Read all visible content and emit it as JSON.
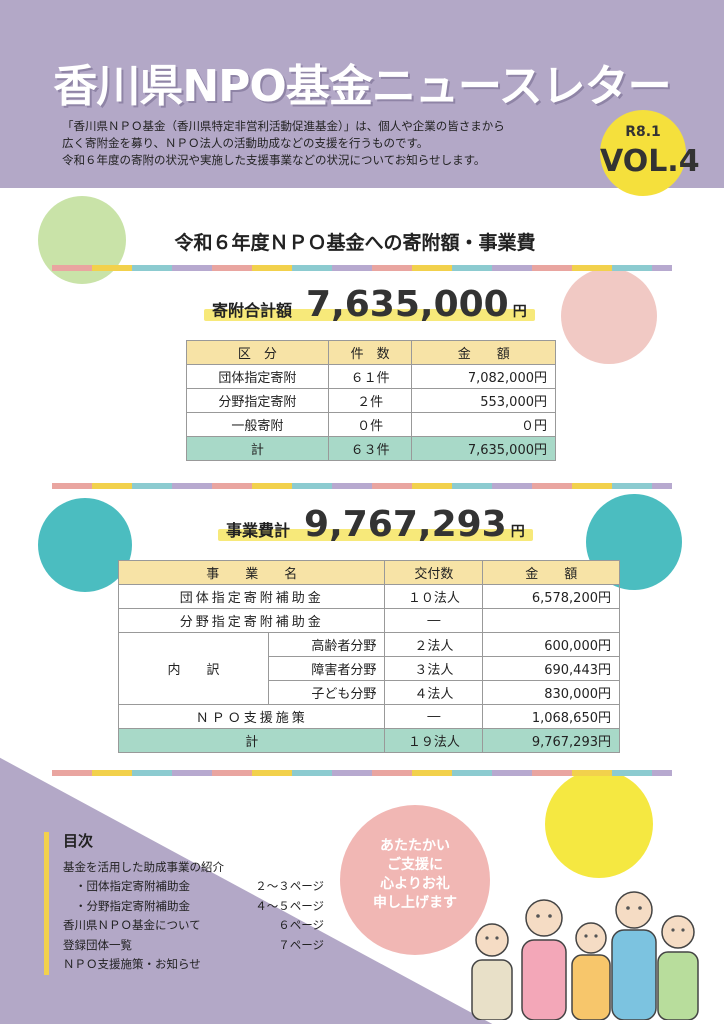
{
  "header": {
    "title": "香川県NPO基金ニュースレター",
    "intro_line1": "「香川県ＮＰＯ基金（香川県特定非営利活動促進基金）」は、個人や企業の皆さまから",
    "intro_line2": "広く寄附金を募り、ＮＰＯ法人の活動助成などの支援を行うものです。",
    "intro_line3": "令和６年度の寄附の状況や実施した支援事業などの状況についてお知らせします。",
    "badge_date": "R8.1",
    "badge_vol": "VOL.4"
  },
  "section": {
    "title": "令和６年度ＮＰＯ基金への寄附額・事業費"
  },
  "donations": {
    "total_label": "寄附合計額",
    "total_value": "7,635,000",
    "unit": "円",
    "headers": [
      "区　分",
      "件　数",
      "金　　額"
    ],
    "rows": [
      [
        "団体指定寄附",
        "６１件",
        "7,082,000円"
      ],
      [
        "分野指定寄附",
        "２件",
        "553,000円"
      ],
      [
        "一般寄附",
        "０件",
        "０円"
      ]
    ],
    "sum": [
      "計",
      "６３件",
      "7,635,000円"
    ]
  },
  "expenses": {
    "total_label": "事業費計",
    "total_value": "9,767,293",
    "unit": "円",
    "headers": [
      "事　　業　　名",
      "交付数",
      "金　　額"
    ],
    "row_group": "団体指定寄附補助金",
    "row_group_count": "１０法人",
    "row_group_amount": "6,578,200円",
    "row_field": "分野指定寄附補助金",
    "row_field_count": "―",
    "breakdown_label": "内　　訳",
    "breakdown": [
      [
        "高齢者分野",
        "２法人",
        "600,000円"
      ],
      [
        "障害者分野",
        "３法人",
        "690,443円"
      ],
      [
        "子ども分野",
        "４法人",
        "830,000円"
      ]
    ],
    "row_npo": "ＮＰＯ支援施策",
    "row_npo_count": "―",
    "row_npo_amount": "1,068,650円",
    "sum": [
      "計",
      "１９法人",
      "9,767,293円"
    ]
  },
  "toc": {
    "title": "目次",
    "heading": "基金を活用した助成事業の紹介",
    "items": [
      {
        "label": "・団体指定寄附補助金",
        "page": "２～３ページ"
      },
      {
        "label": "・分野指定寄附補助金",
        "page": "４～５ページ"
      },
      {
        "label": "香川県ＮＰＯ基金について",
        "page": "６ページ"
      },
      {
        "label": "登録団体一覧",
        "page": "７ページ"
      },
      {
        "label": "ＮＰＯ支援施策・お知らせ",
        "page": ""
      }
    ]
  },
  "thanks": {
    "line1": "あたたかい",
    "line2": "ご支援に",
    "line3": "心よりお礼",
    "line4": "申し上げます"
  },
  "colors": {
    "header": "#b3a8c7",
    "highlight": "#f7e97a",
    "table_header": "#f7e3a6",
    "table_sum": "#a8d9c8",
    "badge": "#f5e03c"
  }
}
